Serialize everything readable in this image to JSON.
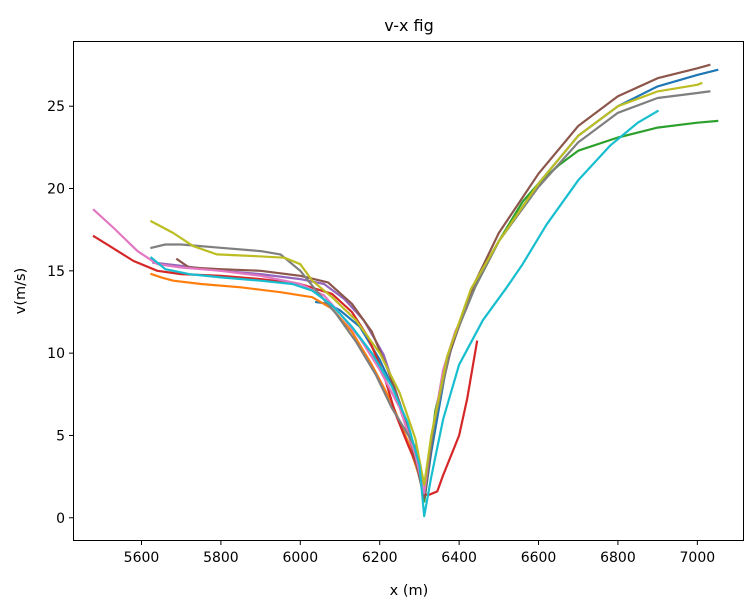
{
  "chart_data": {
    "type": "line",
    "title": "v-x fig",
    "xlabel": "x (m)",
    "ylabel": "v(m/s)",
    "xlim": [
      5430,
      7115
    ],
    "ylim": [
      -1.35,
      28.9
    ],
    "xticks": [
      5600,
      5800,
      6000,
      6200,
      6400,
      6600,
      6800,
      7000
    ],
    "yticks": [
      0,
      5,
      10,
      15,
      20,
      25
    ],
    "grid": false,
    "legend": "none",
    "series": [
      {
        "color": "#1f77b4",
        "points": [
          [
            6040,
            13.1
          ],
          [
            6070,
            13.0
          ],
          [
            6100,
            12.6
          ],
          [
            6150,
            11.6
          ],
          [
            6200,
            9.6
          ],
          [
            6250,
            7.0
          ],
          [
            6290,
            4.0
          ],
          [
            6312,
            1.0
          ],
          [
            6330,
            4.0
          ],
          [
            6370,
            9.5
          ],
          [
            6420,
            13.2
          ],
          [
            6500,
            16.8
          ],
          [
            6600,
            20.3
          ],
          [
            6700,
            23.2
          ],
          [
            6800,
            25.0
          ],
          [
            6900,
            26.2
          ],
          [
            7000,
            26.9
          ],
          [
            7050,
            27.2
          ]
        ]
      },
      {
        "color": "#ff7f0e",
        "points": [
          [
            5625,
            14.8
          ],
          [
            5650,
            14.6
          ],
          [
            5680,
            14.4
          ],
          [
            5750,
            14.2
          ],
          [
            5850,
            14.0
          ],
          [
            5950,
            13.7
          ],
          [
            6030,
            13.4
          ],
          [
            6080,
            12.7
          ],
          [
            6130,
            11.3
          ],
          [
            6180,
            9.3
          ],
          [
            6230,
            7.0
          ],
          [
            6270,
            4.7
          ],
          [
            6300,
            2.5
          ],
          [
            6312,
            1.2
          ]
        ]
      },
      {
        "color": "#2ca02c",
        "points": [
          [
            6312,
            1.0
          ],
          [
            6340,
            6.5
          ],
          [
            6380,
            10.5
          ],
          [
            6440,
            14.0
          ],
          [
            6500,
            16.8
          ],
          [
            6560,
            19.2
          ],
          [
            6600,
            20.3
          ],
          [
            6650,
            21.4
          ],
          [
            6700,
            22.3
          ],
          [
            6800,
            23.1
          ],
          [
            6900,
            23.7
          ],
          [
            7000,
            24.0
          ],
          [
            7050,
            24.1
          ]
        ]
      },
      {
        "color": "#d62728",
        "points": [
          [
            5480,
            17.1
          ],
          [
            5520,
            16.5
          ],
          [
            5580,
            15.6
          ],
          [
            5640,
            15.0
          ],
          [
            5700,
            14.8
          ],
          [
            5800,
            14.7
          ],
          [
            5900,
            14.5
          ],
          [
            6000,
            14.2
          ],
          [
            6080,
            13.6
          ],
          [
            6130,
            12.5
          ],
          [
            6170,
            11.0
          ],
          [
            6210,
            8.7
          ],
          [
            6240,
            6.3
          ],
          [
            6270,
            4.5
          ],
          [
            6300,
            2.8
          ],
          [
            6312,
            1.4
          ],
          [
            6325,
            1.4
          ],
          [
            6345,
            1.6
          ],
          [
            6360,
            2.6
          ],
          [
            6380,
            3.8
          ],
          [
            6400,
            5.0
          ],
          [
            6420,
            7.2
          ],
          [
            6445,
            10.7
          ]
        ]
      },
      {
        "color": "#9467bd",
        "points": [
          [
            5630,
            15.5
          ],
          [
            5700,
            15.3
          ],
          [
            5800,
            15.0
          ],
          [
            5900,
            14.8
          ],
          [
            6000,
            14.5
          ],
          [
            6060,
            14.2
          ],
          [
            6110,
            13.3
          ],
          [
            6160,
            12.0
          ],
          [
            6210,
            9.9
          ],
          [
            6250,
            7.0
          ],
          [
            6285,
            4.0
          ],
          [
            6310,
            1.5
          ]
        ]
      },
      {
        "color": "#8c564b",
        "points": [
          [
            5690,
            15.7
          ],
          [
            5720,
            15.2
          ],
          [
            5800,
            15.1
          ],
          [
            5900,
            15.0
          ],
          [
            6000,
            14.7
          ],
          [
            6070,
            14.3
          ],
          [
            6130,
            13.0
          ],
          [
            6180,
            11.3
          ],
          [
            6220,
            9.0
          ],
          [
            6260,
            6.3
          ],
          [
            6290,
            3.5
          ],
          [
            6312,
            1.2
          ],
          [
            6340,
            6.2
          ],
          [
            6380,
            10.3
          ],
          [
            6440,
            14.3
          ],
          [
            6500,
            17.3
          ],
          [
            6600,
            20.9
          ],
          [
            6700,
            23.8
          ],
          [
            6800,
            25.6
          ],
          [
            6900,
            26.7
          ],
          [
            7000,
            27.3
          ],
          [
            7030,
            27.5
          ]
        ]
      },
      {
        "color": "#e377c2",
        "points": [
          [
            5480,
            18.7
          ],
          [
            5530,
            17.6
          ],
          [
            5590,
            16.2
          ],
          [
            5640,
            15.4
          ],
          [
            5700,
            15.2
          ],
          [
            5800,
            15.0
          ],
          [
            5900,
            14.7
          ],
          [
            6000,
            14.2
          ],
          [
            6060,
            13.5
          ],
          [
            6100,
            12.4
          ],
          [
            6150,
            10.9
          ],
          [
            6200,
            9.0
          ],
          [
            6250,
            6.7
          ],
          [
            6290,
            3.8
          ],
          [
            6312,
            1.5
          ],
          [
            6330,
            4.8
          ],
          [
            6360,
            9.0
          ],
          [
            6390,
            11.3
          ],
          [
            6420,
            12.8
          ]
        ]
      },
      {
        "color": "#7f7f7f",
        "points": [
          [
            5625,
            16.4
          ],
          [
            5660,
            16.6
          ],
          [
            5700,
            16.6
          ],
          [
            5800,
            16.4
          ],
          [
            5900,
            16.2
          ],
          [
            5950,
            16.0
          ],
          [
            6000,
            15.0
          ],
          [
            6040,
            13.8
          ],
          [
            6090,
            12.4
          ],
          [
            6140,
            10.7
          ],
          [
            6190,
            8.7
          ],
          [
            6230,
            6.7
          ],
          [
            6260,
            5.5
          ],
          [
            6290,
            4.3
          ],
          [
            6312,
            2.0
          ],
          [
            6340,
            6.0
          ],
          [
            6380,
            10.5
          ],
          [
            6440,
            14.0
          ],
          [
            6500,
            16.8
          ],
          [
            6600,
            20.1
          ],
          [
            6700,
            22.8
          ],
          [
            6800,
            24.6
          ],
          [
            6900,
            25.5
          ],
          [
            7000,
            25.8
          ],
          [
            7030,
            25.9
          ]
        ]
      },
      {
        "color": "#bcbd22",
        "points": [
          [
            5625,
            18.0
          ],
          [
            5680,
            17.3
          ],
          [
            5730,
            16.5
          ],
          [
            5790,
            16.0
          ],
          [
            5880,
            15.9
          ],
          [
            5960,
            15.8
          ],
          [
            6000,
            15.4
          ],
          [
            6030,
            14.4
          ],
          [
            6080,
            13.4
          ],
          [
            6140,
            12.0
          ],
          [
            6200,
            10.0
          ],
          [
            6250,
            7.6
          ],
          [
            6290,
            4.8
          ],
          [
            6312,
            2.0
          ],
          [
            6330,
            5.0
          ],
          [
            6370,
            9.8
          ],
          [
            6430,
            13.9
          ],
          [
            6500,
            16.8
          ],
          [
            6600,
            20.3
          ],
          [
            6700,
            23.2
          ],
          [
            6800,
            25.0
          ],
          [
            6900,
            25.9
          ],
          [
            7000,
            26.3
          ],
          [
            7010,
            26.4
          ]
        ]
      },
      {
        "color": "#17becf",
        "points": [
          [
            5625,
            15.8
          ],
          [
            5660,
            15.1
          ],
          [
            5720,
            14.8
          ],
          [
            5800,
            14.6
          ],
          [
            5900,
            14.4
          ],
          [
            5980,
            14.2
          ],
          [
            6030,
            13.8
          ],
          [
            6080,
            12.9
          ],
          [
            6130,
            11.6
          ],
          [
            6180,
            10.0
          ],
          [
            6230,
            8.0
          ],
          [
            6270,
            5.8
          ],
          [
            6300,
            3.2
          ],
          [
            6312,
            0.1
          ],
          [
            6315,
            0.5
          ],
          [
            6330,
            2.5
          ],
          [
            6360,
            6.0
          ],
          [
            6400,
            9.3
          ],
          [
            6460,
            12.0
          ],
          [
            6520,
            14.0
          ],
          [
            6560,
            15.4
          ],
          [
            6620,
            17.8
          ],
          [
            6700,
            20.5
          ],
          [
            6780,
            22.6
          ],
          [
            6850,
            24.0
          ],
          [
            6900,
            24.7
          ]
        ]
      }
    ]
  }
}
